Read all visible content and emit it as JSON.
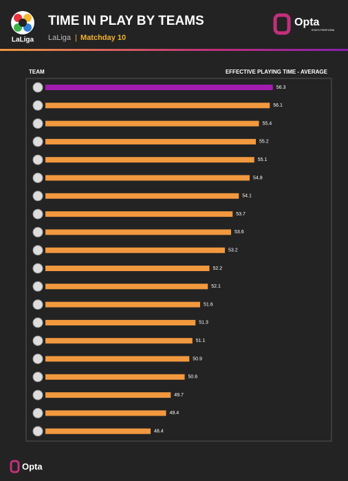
{
  "brand": {
    "league": "LaLiga",
    "provider": "Opta",
    "provider_tag": "STATS PERFORM",
    "footer": "Opta"
  },
  "chart_data": {
    "type": "hbar",
    "title": "TIME IN PLAY BY TEAMS",
    "subtitle_parts": [
      "LaLiga",
      "|",
      "Matchday 10"
    ],
    "category_header": "TEAM",
    "value_header": "EFFECTIVE PLAYING TIME - AVERAGE",
    "categories": [
      null,
      null,
      null,
      null,
      null,
      null,
      null,
      null,
      null,
      null,
      null,
      null,
      null,
      null,
      null,
      null,
      null,
      null,
      null,
      null
    ],
    "values": [
      56.3,
      56.1,
      55.4,
      55.2,
      55.1,
      54.8,
      54.1,
      53.7,
      53.6,
      53.2,
      52.2,
      52.1,
      51.6,
      51.3,
      51.1,
      50.9,
      50.6,
      49.7,
      49.4,
      48.4
    ],
    "colors": [
      "#a21caf",
      "#f2993f",
      "#f2993f",
      "#f2993f",
      "#f2993f",
      "#f2993f",
      "#f2993f",
      "#f2993f",
      "#f2993f",
      "#f2993f",
      "#f2993f",
      "#f2993f",
      "#f2993f",
      "#f2993f",
      "#f2993f",
      "#f2993f",
      "#f2993f",
      "#f2993f",
      "#f2993f",
      "#f2993f"
    ],
    "xlim": [
      41.6,
      60.0
    ]
  }
}
